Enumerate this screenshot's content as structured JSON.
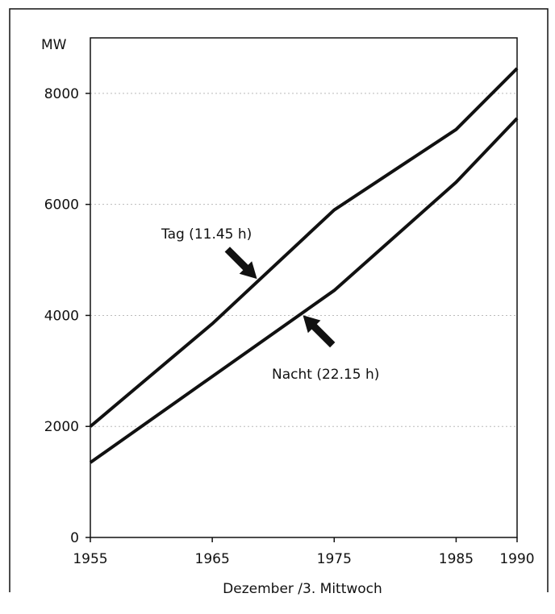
{
  "chart_data": {
    "type": "line",
    "title": "",
    "ylabel": "MW",
    "xlabel": "Dezember /3. Mittwoch",
    "xlim": [
      1955,
      1990
    ],
    "ylim": [
      0,
      9000
    ],
    "x_ticks": [
      1955,
      1965,
      1975,
      1985,
      1990
    ],
    "x_tick_labels": [
      "1955",
      "1965",
      "1975",
      "1985",
      "1990"
    ],
    "y_ticks": [
      0,
      2000,
      4000,
      6000,
      8000
    ],
    "y_tick_labels": [
      "0",
      "2000",
      "4000",
      "6000",
      "8000"
    ],
    "grid": "horizontal dotted",
    "series": [
      {
        "name": "Tag (11.45 h)",
        "x": [
          1955,
          1965,
          1975,
          1985,
          1990
        ],
        "values": [
          2000,
          3850,
          5900,
          7350,
          8450
        ]
      },
      {
        "name": "Nacht (22.15 h)",
        "x": [
          1955,
          1965,
          1975,
          1985,
          1990
        ],
        "values": [
          1350,
          2900,
          4450,
          6400,
          7550
        ]
      }
    ],
    "annotations": [
      {
        "text": "Tag (11.45 h)",
        "series": 0,
        "at_x": 1968.8
      },
      {
        "text": "Nacht (22.15 h)",
        "series": 1,
        "at_x": 1972.3
      }
    ],
    "colors": {
      "line": "#111111",
      "grid": "#bbbbbb",
      "frame": "#111111"
    }
  }
}
